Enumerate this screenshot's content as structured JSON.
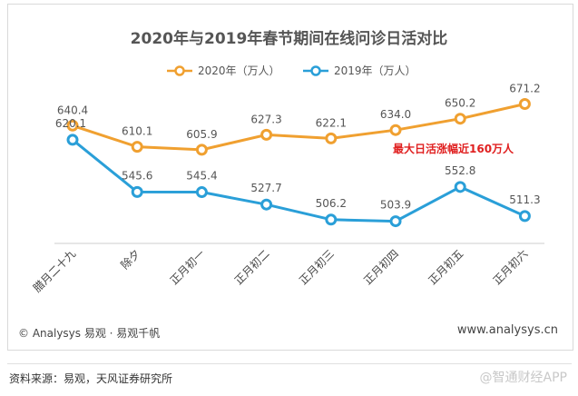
{
  "chart_data": {
    "type": "line",
    "title": "2020年与2019年春节期间在线问诊日活对比",
    "categories": [
      "腊月二十九",
      "除夕",
      "正月初一",
      "正月初二",
      "正月初三",
      "正月初四",
      "正月初五",
      "正月初六"
    ],
    "series": [
      {
        "name": "2020年（万人）",
        "color": "#f0a030",
        "values": [
          640.4,
          610.1,
          605.9,
          627.3,
          622.1,
          634.0,
          650.2,
          671.2
        ]
      },
      {
        "name": "2019年（万人）",
        "color": "#2a9fd8",
        "values": [
          620.1,
          545.6,
          545.4,
          527.7,
          506.2,
          503.9,
          552.8,
          511.3
        ]
      }
    ],
    "value_labels": {
      "2020": [
        "640.4",
        "610.1",
        "605.9",
        "627.3",
        "622.1",
        "634.0",
        "650.2",
        "671.2"
      ],
      "2019": [
        "620.1",
        "545.6",
        "545.4",
        "527.7",
        "506.2",
        "503.9",
        "552.8",
        "511.3"
      ]
    },
    "annotation": "最大日活涨幅近160万人",
    "ylim": [
      480,
      690
    ],
    "grid": false,
    "legend": "top-center"
  },
  "footer": {
    "copyright": "© Analysys 易观 · 易观千帆",
    "website": "www.analysys.cn"
  },
  "source_note": "资料来源：易观，天风证券研究所",
  "brand_watermark": "@智通财经APP"
}
